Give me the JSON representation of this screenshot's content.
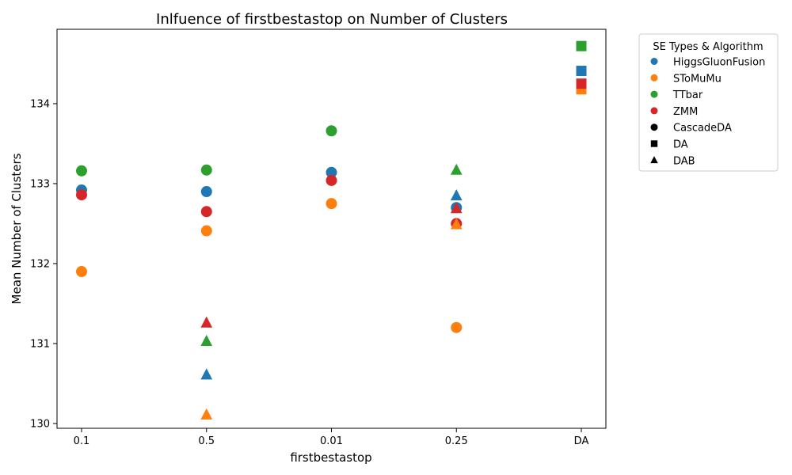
{
  "chart_data": {
    "type": "scatter",
    "title": "Inlfuence of firstbestastop on Number of Clusters",
    "xlabel": "firstbestastop",
    "ylabel": "Mean Number of Clusters",
    "categories": [
      "0.1",
      "0.5",
      "0.01",
      "0.25",
      "DA"
    ],
    "ylim": [
      129.94,
      134.93
    ],
    "yticks": [
      130,
      131,
      132,
      133,
      134
    ],
    "grid": false,
    "legend": {
      "title": "SE Types & Algorithm",
      "placement": "outside-right",
      "se_types": [
        {
          "name": "HiggsGluonFusion",
          "color": "#1f77b4"
        },
        {
          "name": "SToMuMu",
          "color": "#ff7f0e"
        },
        {
          "name": "TTbar",
          "color": "#2ca02c"
        },
        {
          "name": "ZMM",
          "color": "#d62728"
        }
      ],
      "algorithms": [
        {
          "name": "CascadeDA",
          "marker": "circle"
        },
        {
          "name": "DA",
          "marker": "square"
        },
        {
          "name": "DAB",
          "marker": "triangle"
        }
      ]
    },
    "series": [
      {
        "se_type": "HiggsGluonFusion",
        "algorithm": "CascadeDA",
        "points": [
          [
            "0.1",
            132.92
          ],
          [
            "0.5",
            132.9
          ],
          [
            "0.01",
            133.14
          ],
          [
            "0.25",
            132.7
          ]
        ]
      },
      {
        "se_type": "SToMuMu",
        "algorithm": "CascadeDA",
        "points": [
          [
            "0.1",
            131.9
          ],
          [
            "0.5",
            132.41
          ],
          [
            "0.01",
            132.75
          ],
          [
            "0.25",
            131.2
          ]
        ]
      },
      {
        "se_type": "TTbar",
        "algorithm": "CascadeDA",
        "points": [
          [
            "0.1",
            133.16
          ],
          [
            "0.5",
            133.17
          ],
          [
            "0.01",
            133.66
          ]
        ]
      },
      {
        "se_type": "ZMM",
        "algorithm": "CascadeDA",
        "points": [
          [
            "0.1",
            132.86
          ],
          [
            "0.5",
            132.65
          ],
          [
            "0.01",
            133.04
          ],
          [
            "0.25",
            132.5
          ]
        ]
      },
      {
        "se_type": "HiggsGluonFusion",
        "algorithm": "DAB",
        "points": [
          [
            "0.5",
            130.61
          ],
          [
            "0.25",
            132.85
          ]
        ]
      },
      {
        "se_type": "SToMuMu",
        "algorithm": "DAB",
        "points": [
          [
            "0.5",
            130.11
          ],
          [
            "0.25",
            132.49
          ]
        ]
      },
      {
        "se_type": "TTbar",
        "algorithm": "DAB",
        "points": [
          [
            "0.5",
            131.03
          ],
          [
            "0.25",
            133.17
          ]
        ]
      },
      {
        "se_type": "ZMM",
        "algorithm": "DAB",
        "points": [
          [
            "0.5",
            131.26
          ],
          [
            "0.25",
            132.69
          ]
        ]
      },
      {
        "se_type": "SToMuMu",
        "algorithm": "DA",
        "points": [
          [
            "DA",
            134.18
          ]
        ]
      },
      {
        "se_type": "HiggsGluonFusion",
        "algorithm": "DA",
        "points": [
          [
            "DA",
            134.41
          ]
        ]
      },
      {
        "se_type": "ZMM",
        "algorithm": "DA",
        "points": [
          [
            "DA",
            134.25
          ]
        ]
      },
      {
        "se_type": "TTbar",
        "algorithm": "DA",
        "points": [
          [
            "DA",
            134.72
          ]
        ]
      }
    ]
  }
}
